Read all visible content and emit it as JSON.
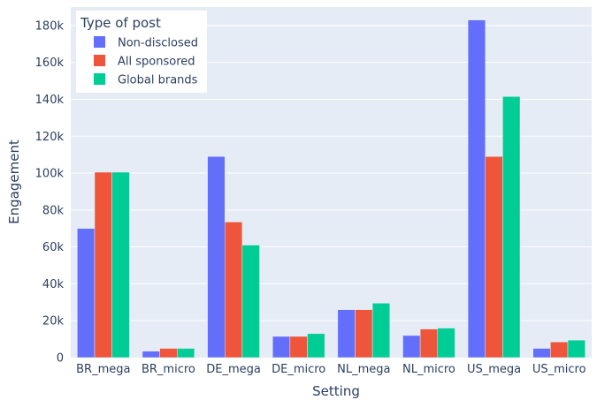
{
  "chart_data": {
    "type": "bar",
    "title": "",
    "xlabel": "Setting",
    "ylabel": "Engagement",
    "categories": [
      "BR_mega",
      "BR_micro",
      "DE_mega",
      "DE_micro",
      "NL_mega",
      "NL_micro",
      "US_mega",
      "US_micro"
    ],
    "series": [
      {
        "name": "Non-disclosed",
        "color": "#636efa",
        "values": [
          70000,
          3500,
          109000,
          11500,
          26000,
          12000,
          183000,
          5000
        ]
      },
      {
        "name": "All sponsored",
        "color": "#ef553b",
        "values": [
          100500,
          5000,
          73500,
          11500,
          26000,
          15500,
          109000,
          8500
        ]
      },
      {
        "name": "Global brands",
        "color": "#00cc96",
        "values": [
          100500,
          5000,
          61000,
          13000,
          29500,
          16000,
          141500,
          9500
        ]
      }
    ],
    "ylim": [
      0,
      190000
    ],
    "yticks": [
      0,
      20000,
      40000,
      60000,
      80000,
      100000,
      120000,
      140000,
      160000,
      180000
    ],
    "ytick_labels": [
      "0",
      "20k",
      "40k",
      "60k",
      "80k",
      "100k",
      "120k",
      "140k",
      "160k",
      "180k"
    ],
    "grid": true,
    "legend": {
      "title": "Type of post",
      "position": "top-left"
    },
    "plot_bgcolor": "#e5ecf6"
  }
}
